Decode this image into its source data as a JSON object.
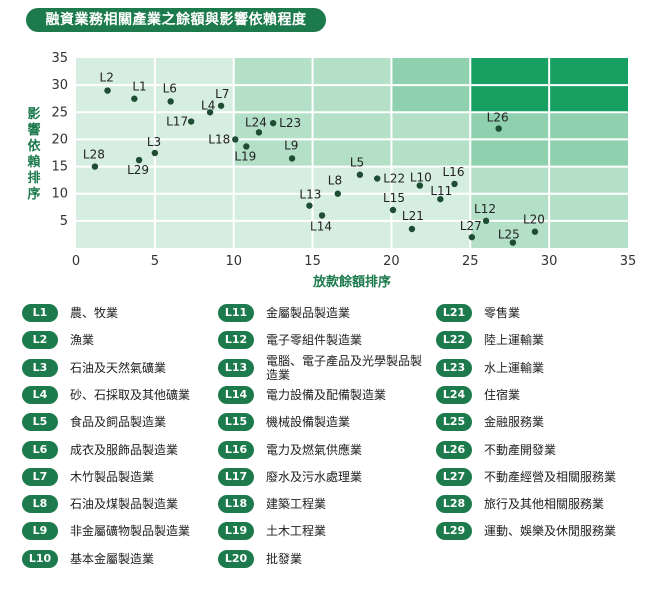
{
  "title": "融資業務相關產業之餘額與影響依賴程度",
  "chart_data": {
    "type": "scatter",
    "xlabel": "放款餘額排序",
    "ylabel": "影響依賴排序",
    "xlim": [
      0,
      35
    ],
    "ylim": [
      0,
      35
    ],
    "xticks": [
      "0",
      "5",
      "10",
      "15",
      "20",
      "25",
      "30",
      "35"
    ],
    "yticks": [
      "5",
      "10",
      "15",
      "20",
      "25",
      "30",
      "35"
    ],
    "points": [
      {
        "label": "L1",
        "x": 3.7,
        "y": 27.5
      },
      {
        "label": "L2",
        "x": 2,
        "y": 29
      },
      {
        "label": "L3",
        "x": 5,
        "y": 17.5
      },
      {
        "label": "L4",
        "x": 8.5,
        "y": 25
      },
      {
        "label": "L5",
        "x": 18,
        "y": 13.5
      },
      {
        "label": "L6",
        "x": 6,
        "y": 27
      },
      {
        "label": "L7",
        "x": 9.2,
        "y": 26.2
      },
      {
        "label": "L8",
        "x": 16.6,
        "y": 10
      },
      {
        "label": "L9",
        "x": 13.7,
        "y": 16.5
      },
      {
        "label": "L10",
        "x": 21.8,
        "y": 11.5
      },
      {
        "label": "L11",
        "x": 23.1,
        "y": 9
      },
      {
        "label": "L12",
        "x": 26,
        "y": 5
      },
      {
        "label": "L13",
        "x": 14.8,
        "y": 7.8
      },
      {
        "label": "L14",
        "x": 15.6,
        "y": 6
      },
      {
        "label": "L15",
        "x": 20.1,
        "y": 7
      },
      {
        "label": "L16",
        "x": 24,
        "y": 11.8
      },
      {
        "label": "L17",
        "x": 7.3,
        "y": 23.3
      },
      {
        "label": "L18",
        "x": 10.1,
        "y": 20
      },
      {
        "label": "L19",
        "x": 10.8,
        "y": 18.7
      },
      {
        "label": "L20",
        "x": 29.1,
        "y": 3
      },
      {
        "label": "L21",
        "x": 21.3,
        "y": 3.5
      },
      {
        "label": "L22",
        "x": 19.1,
        "y": 12.8
      },
      {
        "label": "L23",
        "x": 12.5,
        "y": 23
      },
      {
        "label": "L24",
        "x": 11.6,
        "y": 21.3
      },
      {
        "label": "L25",
        "x": 27.7,
        "y": 1
      },
      {
        "label": "L26",
        "x": 26.8,
        "y": 22
      },
      {
        "label": "L27",
        "x": 25.1,
        "y": 2
      },
      {
        "label": "L28",
        "x": 1.2,
        "y": 15
      },
      {
        "label": "L29",
        "x": 4,
        "y": 16.2
      }
    ],
    "background_colors": [
      "#d6eee2",
      "#b4e0c8",
      "#8fd0ae",
      "#6cc194",
      "#17a062"
    ]
  },
  "legend": [
    {
      "code": "L1",
      "name": "農、牧業"
    },
    {
      "code": "L2",
      "name": "漁業"
    },
    {
      "code": "L3",
      "name": "石油及天然氣礦業"
    },
    {
      "code": "L4",
      "name": "砂、石採取及其他礦業"
    },
    {
      "code": "L5",
      "name": "食品及飼品製造業"
    },
    {
      "code": "L6",
      "name": "成衣及服飾品製造業"
    },
    {
      "code": "L7",
      "name": "木竹製品製造業"
    },
    {
      "code": "L8",
      "name": "石油及煤製品製造業"
    },
    {
      "code": "L9",
      "name": "非金屬礦物製品製造業"
    },
    {
      "code": "L10",
      "name": "基本金屬製造業"
    },
    {
      "code": "L11",
      "name": "金屬製品製造業"
    },
    {
      "code": "L12",
      "name": "電子零組件製造業"
    },
    {
      "code": "L13",
      "name": "電腦、電子產品及光學製品製造業"
    },
    {
      "code": "L14",
      "name": "電力設備及配備製造業"
    },
    {
      "code": "L15",
      "name": "機械設備製造業"
    },
    {
      "code": "L16",
      "name": "電力及燃氣供應業"
    },
    {
      "code": "L17",
      "name": "廢水及污水處理業"
    },
    {
      "code": "L18",
      "name": "建築工程業"
    },
    {
      "code": "L19",
      "name": "土木工程業"
    },
    {
      "code": "L20",
      "name": "批發業"
    },
    {
      "code": "L21",
      "name": "零售業"
    },
    {
      "code": "L22",
      "name": "陸上運輸業"
    },
    {
      "code": "L23",
      "name": "水上運輸業"
    },
    {
      "code": "L24",
      "name": "住宿業"
    },
    {
      "code": "L25",
      "name": "金融服務業"
    },
    {
      "code": "L26",
      "name": "不動產開發業"
    },
    {
      "code": "L27",
      "name": "不動產經營及相關服務業"
    },
    {
      "code": "L28",
      "name": "旅行及其他相關服務業"
    },
    {
      "code": "L29",
      "name": "運動、娛樂及休閒服務業"
    }
  ]
}
